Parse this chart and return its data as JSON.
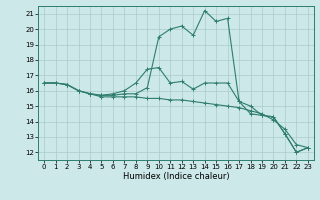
{
  "xlabel": "Humidex (Indice chaleur)",
  "bg_color": "#cce8e8",
  "grid_color": "#aacccc",
  "line_color": "#2e7d6e",
  "xlim": [
    -0.5,
    23.5
  ],
  "ylim": [
    11.5,
    21.5
  ],
  "xticks": [
    0,
    1,
    2,
    3,
    4,
    5,
    6,
    7,
    8,
    9,
    10,
    11,
    12,
    13,
    14,
    15,
    16,
    17,
    18,
    19,
    20,
    21,
    22,
    23
  ],
  "yticks": [
    12,
    13,
    14,
    15,
    16,
    17,
    18,
    19,
    20,
    21
  ],
  "line1_x": [
    0,
    1,
    2,
    3,
    4,
    5,
    6,
    7,
    8,
    9,
    10,
    11,
    12,
    13,
    14,
    15,
    16,
    17,
    18,
    19,
    20,
    21,
    22,
    23
  ],
  "line1_y": [
    16.5,
    16.5,
    16.4,
    16.0,
    15.8,
    15.7,
    15.7,
    15.8,
    15.8,
    16.2,
    19.5,
    20.0,
    20.2,
    19.6,
    21.2,
    20.5,
    20.7,
    15.3,
    15.0,
    14.4,
    14.3,
    13.2,
    12.0,
    12.3
  ],
  "line2_x": [
    0,
    1,
    2,
    3,
    4,
    5,
    6,
    7,
    8,
    9,
    10,
    11,
    12,
    13,
    14,
    15,
    16,
    17,
    18,
    19,
    20,
    21,
    22,
    23
  ],
  "line2_y": [
    16.5,
    16.5,
    16.4,
    16.0,
    15.8,
    15.6,
    15.6,
    15.6,
    15.6,
    15.5,
    15.5,
    15.4,
    15.4,
    15.3,
    15.2,
    15.1,
    15.0,
    14.9,
    14.7,
    14.5,
    14.1,
    13.5,
    12.5,
    12.3
  ],
  "line3_x": [
    0,
    1,
    2,
    3,
    4,
    5,
    6,
    7,
    8,
    9,
    10,
    11,
    12,
    13,
    14,
    15,
    16,
    17,
    18,
    19,
    20,
    21,
    22,
    23
  ],
  "line3_y": [
    16.5,
    16.5,
    16.4,
    16.0,
    15.8,
    15.7,
    15.8,
    16.0,
    16.5,
    17.4,
    17.5,
    16.5,
    16.6,
    16.1,
    16.5,
    16.5,
    16.5,
    15.3,
    14.5,
    14.4,
    14.3,
    13.2,
    12.0,
    12.3
  ]
}
